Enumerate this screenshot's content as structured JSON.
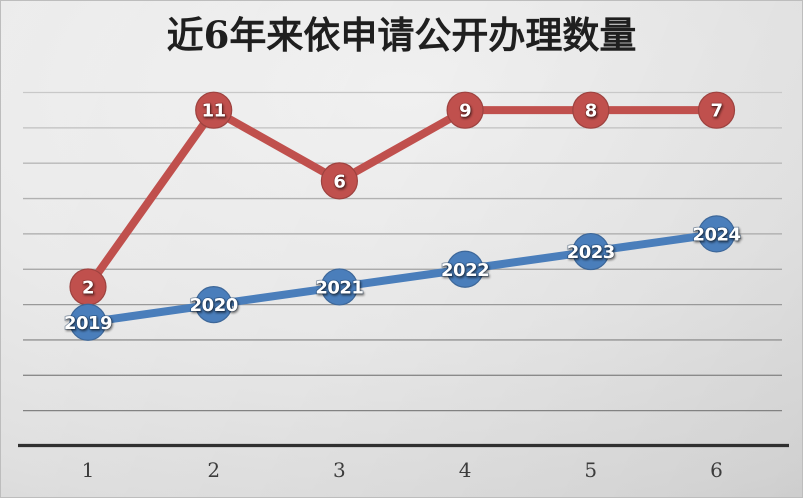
{
  "chart_data": {
    "type": "line",
    "title": "近6年来依申请公开办理数量",
    "categories": [
      "1",
      "2",
      "3",
      "4",
      "5",
      "6"
    ],
    "xlabel": "",
    "ylabel": "",
    "legend_position": "none",
    "x_axis": {
      "tick_labels": [
        "1",
        "2",
        "3",
        "4",
        "5",
        "6"
      ],
      "line_color": "#303030"
    },
    "y_axis": {
      "tick_labels_visible": false,
      "gridline_count": 10,
      "gridlines_visible": true,
      "gridline_color_top": "#c8c8c8",
      "gridline_color_bottom": "#828282"
    },
    "background": {
      "center_color": "#f0f0f0",
      "edge_color": "#c9c9c9"
    },
    "title_color": "#1f1f1f",
    "series": [
      {
        "name": "red-count-series",
        "color": "#c0504d",
        "marker": "circle",
        "values": [
          2,
          11,
          6,
          9,
          8,
          7
        ],
        "data_labels": [
          "2",
          "11",
          "6",
          "9",
          "8",
          "7"
        ],
        "label_color": "#ffffff",
        "plotted_y_gridline_units": [
          4.5,
          9.5,
          7.5,
          9.5,
          9.5,
          9.5
        ]
      },
      {
        "name": "blue-year-series",
        "color": "#4a7ebb",
        "marker": "circle",
        "values": [
          2019,
          2020,
          2021,
          2022,
          2023,
          2024
        ],
        "data_labels": [
          "2019",
          "2020",
          "2021",
          "2022",
          "2023",
          "2024"
        ],
        "label_color": "#ffffff",
        "plotted_y_gridline_units": [
          3.5,
          4.0,
          4.5,
          5.0,
          5.5,
          6.0
        ]
      }
    ]
  }
}
